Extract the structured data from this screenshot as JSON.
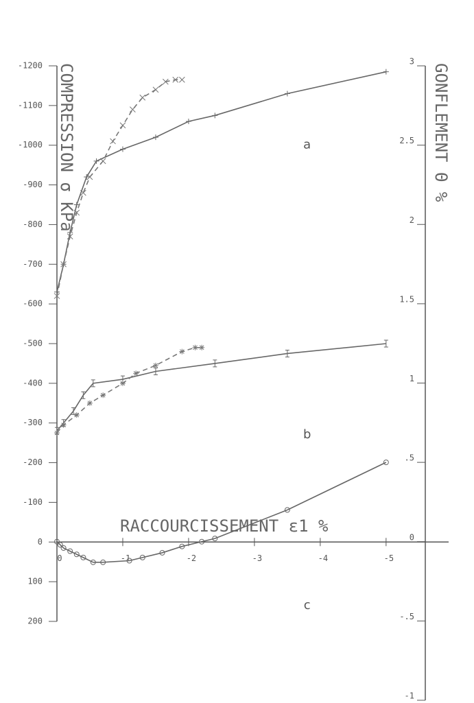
{
  "chart_data": {
    "type": "line",
    "ylabel": "COMPRESSION σ KPa",
    "y2label": "GONFLEMENT Θ %",
    "xlabel": "RACCOURCISSEMENT ε1 %",
    "xlim": [
      0,
      -5.95
    ],
    "xticks": [
      0,
      -1,
      -2,
      -3,
      -4,
      -5
    ],
    "ylim": [
      200,
      -1200
    ],
    "yticks": [
      -1200,
      -1100,
      -1000,
      -900,
      -800,
      -700,
      -600,
      -500,
      -400,
      -300,
      -200,
      -100,
      0,
      100,
      200
    ],
    "y2lim": [
      -1,
      3
    ],
    "y2ticks": [
      3,
      2.5,
      2,
      1.5,
      1,
      {
        "value": 0.5,
        "label": ".5"
      },
      0,
      {
        "value": -0.5,
        "label": "-.5"
      },
      -1
    ],
    "annotations": [
      {
        "text": "a",
        "x": -3.8,
        "y": -1000
      },
      {
        "text": "b",
        "x": -3.8,
        "y": -270
      },
      {
        "text": "c",
        "x": -3.8,
        "y": 160
      }
    ],
    "series": [
      {
        "color": "#666",
        "dashed": false,
        "marker": "+",
        "x": [
          0,
          -0.1,
          -0.2,
          -0.3,
          -0.45,
          -0.6,
          -1,
          -1.5,
          -2,
          -2.4,
          -3.5,
          -5
        ],
        "values": [
          -630,
          -700,
          -780,
          -850,
          -920,
          -960,
          -990,
          -1020,
          -1060,
          -1075,
          -1130,
          -1185
        ]
      },
      {
        "color": "#777",
        "dashed": true,
        "marker": "x",
        "x": [
          0,
          -0.1,
          -0.2,
          -0.3,
          -0.4,
          -0.5,
          -0.7,
          -0.85,
          -1,
          -1.15,
          -1.3,
          -1.5,
          -1.65,
          -1.8,
          -1.9
        ],
        "values": [
          -620,
          -700,
          -770,
          -830,
          -880,
          -920,
          -960,
          -1010,
          -1050,
          -1090,
          -1120,
          -1140,
          -1160,
          -1165,
          -1165
        ]
      },
      {
        "color": "#666",
        "dashed": false,
        "marker": "I",
        "x": [
          0,
          -0.1,
          -0.25,
          -0.4,
          -0.55,
          -1,
          -1.5,
          -2.4,
          -3.5,
          -5
        ],
        "values": [
          -280,
          -300,
          -330,
          -370,
          -400,
          -410,
          -430,
          -450,
          -475,
          -500
        ]
      },
      {
        "color": "#777",
        "dashed": true,
        "marker": "*",
        "x": [
          0,
          -0.1,
          -0.3,
          -0.5,
          -0.7,
          -1,
          -1.2,
          -1.5,
          -1.9,
          -2.1,
          -2.2
        ],
        "values": [
          -275,
          -295,
          -320,
          -350,
          -370,
          -400,
          -425,
          -445,
          -480,
          -490,
          -490
        ]
      },
      {
        "color": "#666",
        "dashed": false,
        "marker": "o",
        "axis": "y2",
        "x": [
          0,
          -0.05,
          -0.1,
          -0.2,
          -0.3,
          -0.4,
          -0.55,
          -0.7,
          -1.1,
          -1.3,
          -1.6,
          -1.9,
          -2.2,
          -2.4,
          -3.5,
          -5
        ],
        "values": [
          0,
          -0.02,
          -0.04,
          -0.06,
          -0.08,
          -0.1,
          -0.13,
          -0.13,
          -0.12,
          -0.1,
          -0.07,
          -0.03,
          0,
          0.02,
          0.2,
          0.5
        ]
      }
    ]
  }
}
